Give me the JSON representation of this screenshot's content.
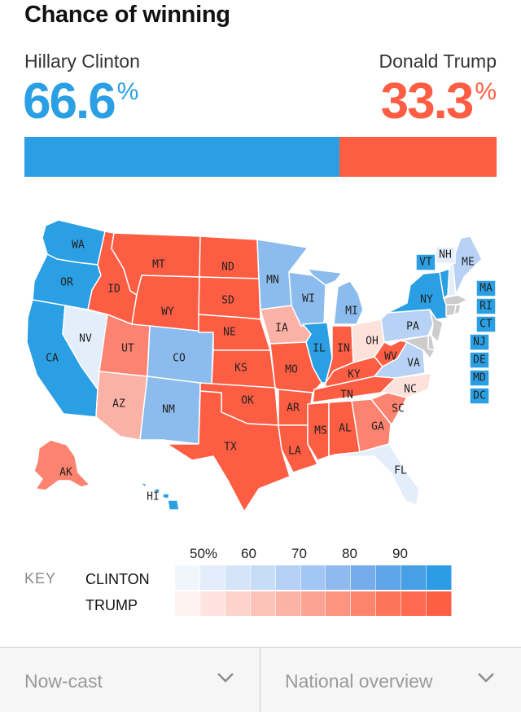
{
  "header": {
    "title": "Chance of winning",
    "left_candidate": {
      "name": "Hillary Clinton",
      "pct": "66.6",
      "pct_symbol": "%",
      "pct_value": 66.6,
      "color": "#2a9fe3"
    },
    "right_candidate": {
      "name": "Donald Trump",
      "pct": "33.3",
      "pct_symbol": "%",
      "pct_value": 33.3,
      "color": "#fd5d43"
    }
  },
  "map": {
    "shade_colors": {
      "DR": "#fd5d43",
      "R": "#fd8371",
      "LR": "#fbb2a6",
      "VLR": "#fde2dc",
      "VLD": "#e4eefb",
      "LD": "#b7d2f4",
      "D": "#8cbbee",
      "DD": "#2a9fe3"
    },
    "states": [
      {
        "abbr": "WA",
        "lean": "DD"
      },
      {
        "abbr": "OR",
        "lean": "DD"
      },
      {
        "abbr": "CA",
        "lean": "DD"
      },
      {
        "abbr": "NV",
        "lean": "VLD"
      },
      {
        "abbr": "ID",
        "lean": "DR"
      },
      {
        "abbr": "MT",
        "lean": "DR"
      },
      {
        "abbr": "WY",
        "lean": "DR"
      },
      {
        "abbr": "UT",
        "lean": "R"
      },
      {
        "abbr": "AZ",
        "lean": "LR"
      },
      {
        "abbr": "CO",
        "lean": "D"
      },
      {
        "abbr": "NM",
        "lean": "D"
      },
      {
        "abbr": "ND",
        "lean": "DR"
      },
      {
        "abbr": "SD",
        "lean": "DR"
      },
      {
        "abbr": "NE",
        "lean": "DR"
      },
      {
        "abbr": "KS",
        "lean": "DR"
      },
      {
        "abbr": "OK",
        "lean": "DR"
      },
      {
        "abbr": "TX",
        "lean": "DR"
      },
      {
        "abbr": "MN",
        "lean": "D"
      },
      {
        "abbr": "IA",
        "lean": "LR"
      },
      {
        "abbr": "MO",
        "lean": "DR"
      },
      {
        "abbr": "AR",
        "lean": "DR"
      },
      {
        "abbr": "LA",
        "lean": "DR"
      },
      {
        "abbr": "WI",
        "lean": "D"
      },
      {
        "abbr": "IL",
        "lean": "DD"
      },
      {
        "abbr": "MI",
        "lean": "D"
      },
      {
        "abbr": "IN",
        "lean": "DR"
      },
      {
        "abbr": "OH",
        "lean": "VLR"
      },
      {
        "abbr": "KY",
        "lean": "DR"
      },
      {
        "abbr": "TN",
        "lean": "DR"
      },
      {
        "abbr": "MS",
        "lean": "DR"
      },
      {
        "abbr": "AL",
        "lean": "DR"
      },
      {
        "abbr": "GA",
        "lean": "R"
      },
      {
        "abbr": "FL",
        "lean": "VLD"
      },
      {
        "abbr": "SC",
        "lean": "R"
      },
      {
        "abbr": "NC",
        "lean": "VLR"
      },
      {
        "abbr": "VA",
        "lean": "LD"
      },
      {
        "abbr": "WV",
        "lean": "DR"
      },
      {
        "abbr": "PA",
        "lean": "LD"
      },
      {
        "abbr": "NY",
        "lean": "DD"
      },
      {
        "abbr": "ME",
        "lean": "LD"
      },
      {
        "abbr": "NH",
        "lean": "VLD"
      },
      {
        "abbr": "VT",
        "lean": "DD"
      },
      {
        "abbr": "AK",
        "lean": "R"
      },
      {
        "abbr": "HI",
        "lean": "DD"
      }
    ],
    "small_states": [
      {
        "abbr": "VT",
        "lean": "DD"
      },
      {
        "abbr": "NH",
        "lean": "VLD"
      },
      {
        "abbr": "MA",
        "lean": "DD"
      },
      {
        "abbr": "RI",
        "lean": "DD"
      },
      {
        "abbr": "CT",
        "lean": "DD"
      },
      {
        "abbr": "NJ",
        "lean": "DD"
      },
      {
        "abbr": "DE",
        "lean": "DD"
      },
      {
        "abbr": "MD",
        "lean": "DD"
      },
      {
        "abbr": "DC",
        "lean": "DD"
      }
    ]
  },
  "key": {
    "label": "KEY",
    "ticks": [
      "50%",
      "60",
      "70",
      "80",
      "90"
    ],
    "clinton_label": "CLINTON",
    "trump_label": "TRUMP",
    "clinton_colors": [
      "#f1f6fd",
      "#e3edfb",
      "#d5e5f9",
      "#c6dcf7",
      "#b4d1f5",
      "#a2c6f3",
      "#8fbaf0",
      "#74acec",
      "#5ea5e9",
      "#47a0e6",
      "#2c9ce6"
    ],
    "trump_colors": [
      "#fff3f1",
      "#fee3df",
      "#fdd3cc",
      "#fdc3b9",
      "#fcb3a6",
      "#fca493",
      "#fc9480",
      "#fc846d",
      "#fc745a",
      "#fd6a4f",
      "#fd5f44"
    ]
  },
  "footer": {
    "left_dropdown": "Now-cast",
    "right_dropdown": "National overview"
  }
}
